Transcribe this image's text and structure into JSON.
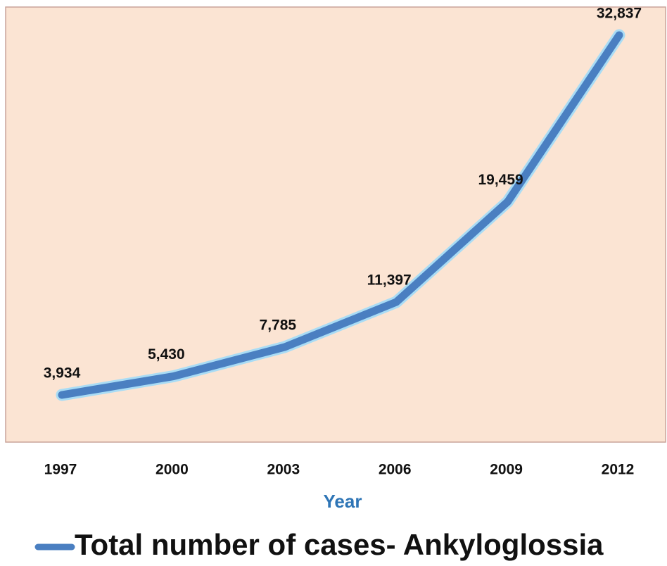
{
  "chart_data": {
    "type": "line",
    "categories": [
      "1997",
      "2000",
      "2003",
      "2006",
      "2009",
      "2012"
    ],
    "series": [
      {
        "name": "Total number of cases- Ankyloglossia",
        "color": "#4a7fc1",
        "values": [
          3934,
          5430,
          7785,
          11397,
          19459,
          32837
        ],
        "value_labels": [
          "3,934",
          "5,430",
          "7,785",
          "11,397",
          "19,459",
          "32,837"
        ]
      }
    ],
    "x_label": "Year",
    "legend": "bottom"
  }
}
